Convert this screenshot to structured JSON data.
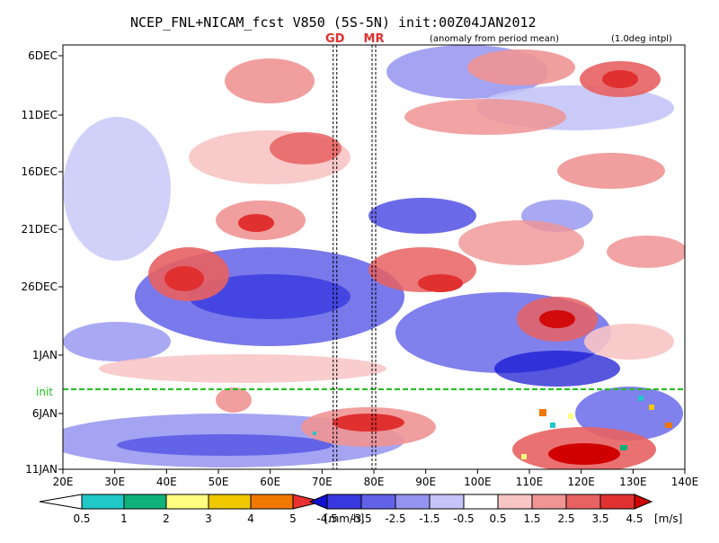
{
  "chart_data": {
    "type": "heatmap",
    "title": "NCEP_FNL+NICAM_fcst V850 (5S-5N) init:00Z04JAN2012",
    "subtitle": "(anomaly from period mean)",
    "note": "(1.0deg intpl)",
    "x_ticks": [
      "20E",
      "30E",
      "40E",
      "50E",
      "60E",
      "70E",
      "80E",
      "90E",
      "100E",
      "110E",
      "120E",
      "130E",
      "140E"
    ],
    "x_range": [
      20,
      140
    ],
    "y_ticks": [
      "6DEC",
      "11DEC",
      "16DEC",
      "21DEC",
      "26DEC",
      "1JAN",
      "6JAN",
      "11JAN"
    ],
    "markers": [
      {
        "label": "GD",
        "lon": 72.5
      },
      {
        "label": "MR",
        "lon": 80
      }
    ],
    "init_label": "init",
    "colorbar_precip": {
      "labels": [
        "0.5",
        "1",
        "2",
        "3",
        "4",
        "5"
      ],
      "unit": "[mm/h]",
      "colors": [
        "#ffffff",
        "#20c8c8",
        "#10b07a",
        "#ffff80",
        "#f0c800",
        "#f07800",
        "#e83030"
      ]
    },
    "colorbar_wind": {
      "labels": [
        "-4.5",
        "-3.5",
        "-2.5",
        "-1.5",
        "-0.5",
        "0.5",
        "1.5",
        "2.5",
        "3.5",
        "4.5"
      ],
      "unit": "[m/s]",
      "colors": [
        "#1010d0",
        "#3838e0",
        "#6262e8",
        "#9494f0",
        "#c4c4f8",
        "#ffffff",
        "#f8c4c4",
        "#f09494",
        "#e86262",
        "#e03030",
        "#d00000"
      ]
    }
  }
}
